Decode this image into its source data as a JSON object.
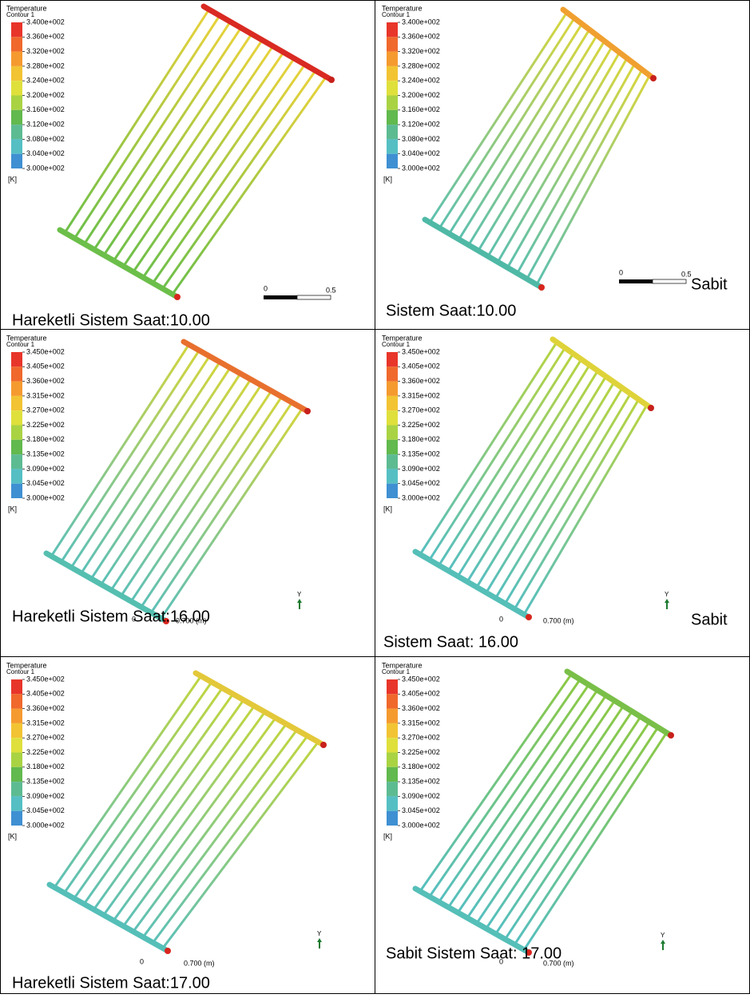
{
  "panels": [
    {
      "legend": {
        "title": "Temperature",
        "subtitle": "Contour 1",
        "labels": [
          "3.400e+002",
          "3.360e+002",
          "3.320e+002",
          "3.280e+002",
          "3.240e+002",
          "3.200e+002",
          "3.160e+002",
          "3.120e+002",
          "3.080e+002",
          "3.040e+002",
          "3.000e+002"
        ],
        "unit": "[K]"
      },
      "scale": [
        "0",
        "0.5"
      ],
      "caption": "Hareketli Sistem Saat:10.00"
    },
    {
      "legend": {
        "title": "Temperature",
        "subtitle": "Contour 1",
        "labels": [
          "3.400e+002",
          "3.360e+002",
          "3.320e+002",
          "3.280e+002",
          "3.240e+002",
          "3.200e+002",
          "3.160e+002",
          "3.120e+002",
          "3.080e+002",
          "3.040e+002",
          "3.000e+002"
        ],
        "unit": "[K]"
      },
      "scale": [
        "0",
        "0.5"
      ],
      "side_label": "Sabit",
      "caption": "Sistem Saat:10.00"
    },
    {
      "legend": {
        "title": "Temperature",
        "subtitle": "Contour 1",
        "labels": [
          "3.450e+002",
          "3.405e+002",
          "3.360e+002",
          "3.315e+002",
          "3.270e+002",
          "3.225e+002",
          "3.180e+002",
          "3.135e+002",
          "3.090e+002",
          "3.045e+002",
          "3.000e+002"
        ],
        "unit": "[K]"
      },
      "scale": [
        "0",
        "0.700 (m)"
      ],
      "axis": "Y",
      "caption": "Hareketli Sistem Saat:16.00"
    },
    {
      "legend": {
        "title": "Temperature",
        "subtitle": "Contour 1",
        "labels": [
          "3.450e+002",
          "3.405e+002",
          "3.360e+002",
          "3.315e+002",
          "3.270e+002",
          "3.225e+002",
          "3.180e+002",
          "3.135e+002",
          "3.090e+002",
          "3.045e+002",
          "3.000e+002"
        ],
        "unit": "[K]"
      },
      "scale": [
        "0",
        "0.700 (m)"
      ],
      "axis": "Y",
      "side_label": "Sabit",
      "caption": "Sistem Saat: 16.00"
    },
    {
      "legend": {
        "title": "Temperature",
        "subtitle": "Contour 1",
        "labels": [
          "3.450e+002",
          "3.405e+002",
          "3.360e+002",
          "3.315e+002",
          "3.270e+002",
          "3.225e+002",
          "3.180e+002",
          "3.135e+002",
          "3.090e+002",
          "3.045e+002",
          "3.000e+002"
        ],
        "unit": "[K]"
      },
      "scale": [
        "0",
        "0.700 (m)"
      ],
      "axis": "Y",
      "caption": "Hareketli Sistem Saat:17.00"
    },
    {
      "legend": {
        "title": "Temperature",
        "subtitle": "Contour 1",
        "labels": [
          "3.450e+002",
          "3.405e+002",
          "3.360e+002",
          "3.315e+002",
          "3.270e+002",
          "3.225e+002",
          "3.180e+002",
          "3.135e+002",
          "3.090e+002",
          "3.045e+002",
          "3.000e+002"
        ],
        "unit": "[K]"
      },
      "scale": [
        "0",
        "0.700 (m)"
      ],
      "axis": "Y",
      "caption": "Sabit Sistem Saat: 17.00"
    }
  ]
}
